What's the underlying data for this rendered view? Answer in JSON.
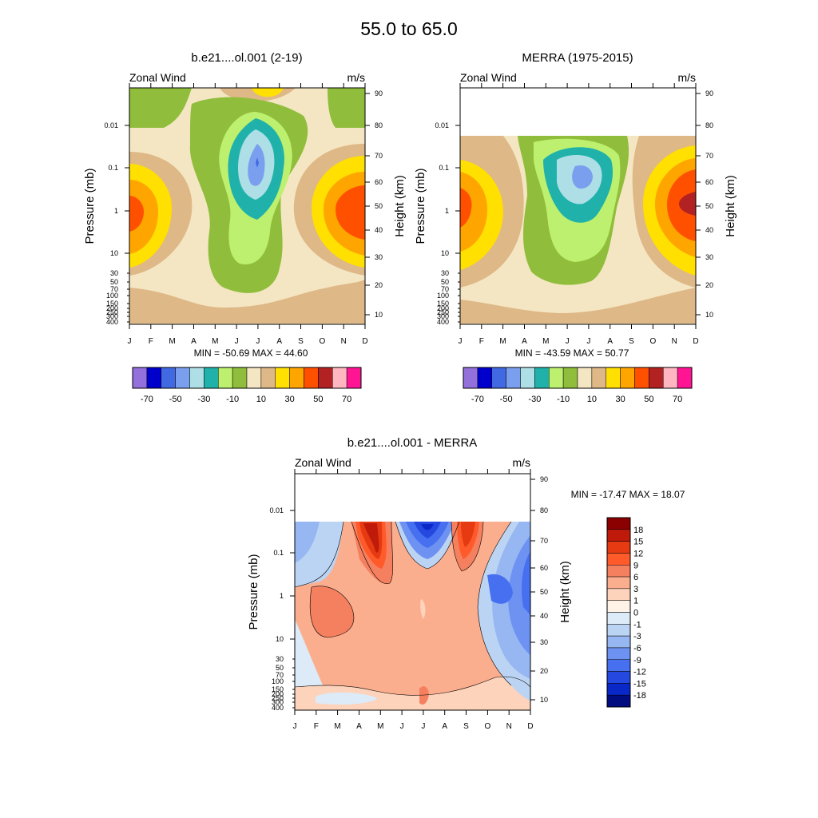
{
  "figure_title": "55.0 to  65.0",
  "months": [
    "J",
    "F",
    "M",
    "A",
    "M",
    "J",
    "J",
    "A",
    "S",
    "O",
    "N",
    "D"
  ],
  "pressure_ticks": [
    "0.01",
    "0.1",
    "1",
    "10",
    "30",
    "50",
    "70",
    "100",
    "150",
    "200",
    "250",
    "300",
    "400"
  ],
  "height_ticks": [
    "90",
    "80",
    "70",
    "60",
    "50",
    "40",
    "30",
    "20",
    "10"
  ],
  "panels": [
    {
      "title": "b.e21....ol.001 (2-19)",
      "left_label": "Zonal Wind",
      "right_label": "m/s",
      "y_label": "Pressure (mb)",
      "y2_label": "Height (km)",
      "stats": "MIN = -50.69  MAX =  44.60"
    },
    {
      "title": "MERRA (1975-2015)",
      "left_label": "Zonal Wind",
      "right_label": "m/s",
      "y_label": "Pressure (mb)",
      "y2_label": "Height (km)",
      "stats": "MIN = -43.59  MAX =  50.77"
    },
    {
      "title": "b.e21....ol.001 - MERRA",
      "left_label": "Zonal Wind",
      "right_label": "m/s",
      "y_label": "Pressure (mb)",
      "y2_label": "Height (km)",
      "stats": "MIN = -17.47  MAX =  18.07"
    }
  ],
  "colorbar_full": {
    "colors": [
      "#9370DB",
      "#0000CD",
      "#4169E1",
      "#7B9FEF",
      "#AEDFE6",
      "#20B2AA",
      "#BDF06E",
      "#90BE3C",
      "#F5E6C3",
      "#DEB887",
      "#FFE000",
      "#FFA500",
      "#FF5000",
      "#B22222",
      "#FFB6C1",
      "#FF1493"
    ],
    "labels": [
      "-70",
      "-50",
      "-30",
      "-10",
      "10",
      "30",
      "50",
      "70"
    ]
  },
  "colorbar_diff": {
    "colors": [
      "#8B0000",
      "#C01A0A",
      "#E63A12",
      "#FF5A2A",
      "#F58060",
      "#FBAE8E",
      "#FDD3BC",
      "#FFF2E6",
      "#DCEBF7",
      "#BCD4F4",
      "#97B7F2",
      "#6E92F2",
      "#4670F0",
      "#2448E0",
      "#0A28C8",
      "#000C80"
    ],
    "labels": [
      "18",
      "15",
      "12",
      "9",
      "6",
      "3",
      "1",
      "0",
      "-1",
      "-3",
      "-6",
      "-9",
      "-12",
      "-15",
      "-18"
    ]
  },
  "chart_data": [
    {
      "type": "heatmap",
      "title": "b.e21....ol.001 (2-19)",
      "x": [
        "J",
        "F",
        "M",
        "A",
        "M",
        "J",
        "J",
        "A",
        "S",
        "O",
        "N",
        "D"
      ],
      "y_pressure_mb": [
        400,
        100,
        30,
        10,
        1,
        0.1,
        0.01
      ],
      "ylabel": "Pressure (mb)",
      "y2label": "Height (km)",
      "units": "m/s",
      "min": -50.69,
      "max": 44.6,
      "z": [
        [
          2,
          5,
          8,
          10,
          8,
          5,
          2,
          2,
          5,
          10,
          8,
          2
        ],
        [
          8,
          10,
          15,
          10,
          0,
          -5,
          -10,
          -5,
          5,
          15,
          15,
          8
        ],
        [
          25,
          20,
          10,
          5,
          -10,
          -15,
          -20,
          -10,
          10,
          25,
          25,
          25
        ],
        [
          40,
          30,
          10,
          0,
          -20,
          -25,
          -30,
          -20,
          10,
          35,
          40,
          40
        ],
        [
          25,
          20,
          5,
          -10,
          -30,
          -40,
          -50,
          -30,
          0,
          20,
          30,
          25
        ],
        [
          -10,
          -5,
          0,
          -5,
          -20,
          -30,
          -35,
          -20,
          0,
          10,
          0,
          -10
        ],
        [
          -10,
          -10,
          -5,
          5,
          15,
          20,
          25,
          20,
          10,
          0,
          -10,
          -10
        ]
      ]
    },
    {
      "type": "heatmap",
      "title": "MERRA (1975-2015)",
      "x": [
        "J",
        "F",
        "M",
        "A",
        "M",
        "J",
        "J",
        "A",
        "S",
        "O",
        "N",
        "D"
      ],
      "y_pressure_mb": [
        400,
        100,
        30,
        10,
        1,
        0.1
      ],
      "ylabel": "Pressure (mb)",
      "y2label": "Height (km)",
      "units": "m/s",
      "min": -43.59,
      "max": 50.77,
      "z": [
        [
          2,
          5,
          8,
          5,
          2,
          0,
          0,
          2,
          5,
          10,
          8,
          2
        ],
        [
          10,
          10,
          5,
          0,
          -5,
          -10,
          -10,
          -5,
          5,
          15,
          15,
          10
        ],
        [
          25,
          20,
          10,
          0,
          -10,
          -15,
          -15,
          -5,
          10,
          25,
          30,
          25
        ],
        [
          35,
          30,
          10,
          0,
          -15,
          -20,
          -20,
          -10,
          10,
          35,
          40,
          40
        ],
        [
          30,
          25,
          5,
          -10,
          -25,
          -35,
          -40,
          -25,
          5,
          35,
          50,
          45
        ],
        [
          10,
          5,
          0,
          -10,
          -20,
          -25,
          -25,
          -15,
          5,
          20,
          25,
          20
        ]
      ]
    },
    {
      "type": "heatmap",
      "title": "b.e21....ol.001 - MERRA",
      "x": [
        "J",
        "F",
        "M",
        "A",
        "M",
        "J",
        "J",
        "A",
        "S",
        "O",
        "N",
        "D"
      ],
      "y_pressure_mb": [
        400,
        100,
        30,
        10,
        1,
        0.1
      ],
      "ylabel": "Pressure (mb)",
      "y2label": "Height (km)",
      "units": "m/s",
      "min": -17.47,
      "max": 18.07,
      "z": [
        [
          -1,
          -1,
          -1,
          0,
          0,
          0,
          1,
          0,
          0,
          0,
          -1,
          -1
        ],
        [
          0,
          1,
          1,
          1,
          1,
          1,
          1,
          1,
          1,
          0,
          -1,
          -3
        ],
        [
          1,
          3,
          3,
          3,
          3,
          3,
          3,
          3,
          3,
          0,
          -3,
          -6
        ],
        [
          1,
          6,
          6,
          3,
          3,
          3,
          3,
          3,
          3,
          -3,
          -6,
          -9
        ],
        [
          -1,
          1,
          3,
          3,
          6,
          3,
          1,
          3,
          3,
          -6,
          -9,
          -9
        ],
        [
          -3,
          -1,
          0,
          12,
          15,
          -9,
          -15,
          9,
          12,
          -3,
          -6,
          -9
        ]
      ]
    }
  ]
}
